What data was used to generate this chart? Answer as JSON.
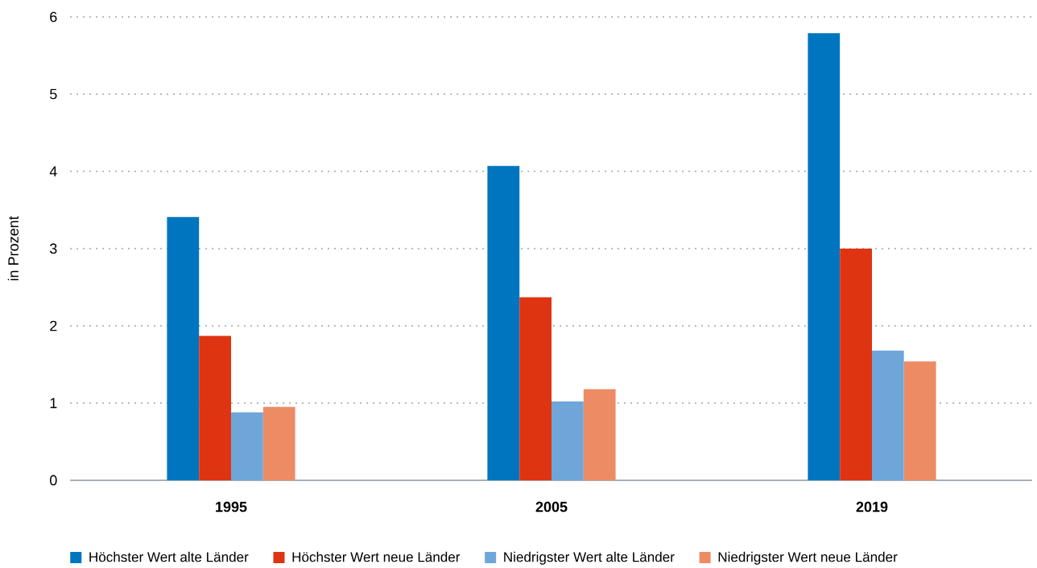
{
  "chart_data": {
    "type": "bar",
    "ylabel": "in Prozent",
    "categories": [
      "1995",
      "2005",
      "2019"
    ],
    "series": [
      {
        "name": "Höchster Wert alte Länder",
        "color": "#0075bf",
        "values": [
          3.41,
          4.07,
          5.79
        ]
      },
      {
        "name": "Höchster Wert neue Länder",
        "color": "#de3412",
        "values": [
          1.87,
          2.37,
          3.0
        ]
      },
      {
        "name": "Niedrigster Wert alte Länder",
        "color": "#6fa6da",
        "values": [
          0.88,
          1.02,
          1.68
        ]
      },
      {
        "name": "Niedrigster Wert neue Länder",
        "color": "#ed8b65",
        "values": [
          0.95,
          1.18,
          1.54
        ]
      }
    ],
    "ylim": [
      0,
      6
    ],
    "yticks": [
      0,
      1,
      2,
      3,
      4,
      5,
      6
    ],
    "grid": "y",
    "legend": "bottom"
  }
}
